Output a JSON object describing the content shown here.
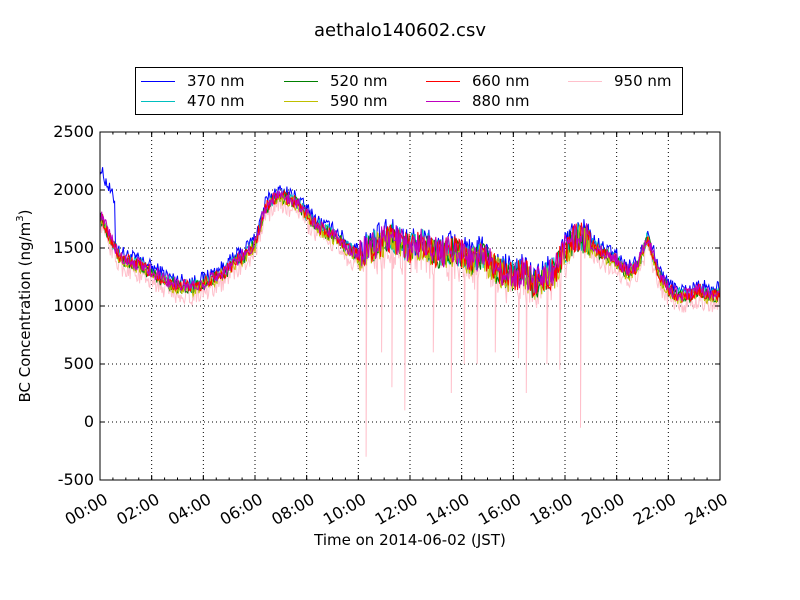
{
  "chart_data": {
    "type": "line",
    "title": "aethalo140602.csv",
    "xlabel": "Time on 2014-06-02 (JST)",
    "ylabel": "BC Concentration (ng/m³)",
    "ylabel_parts": {
      "text": "BC Concentration (ng/m",
      "superscript": "3",
      "close": ")"
    },
    "xlim": [
      0,
      24
    ],
    "ylim": [
      -500,
      2500
    ],
    "x_unit": "hours (JST)",
    "x_ticks": [
      "00:00",
      "02:00",
      "04:00",
      "06:00",
      "08:00",
      "10:00",
      "12:00",
      "14:00",
      "16:00",
      "18:00",
      "20:00",
      "22:00",
      "24:00"
    ],
    "y_ticks": [
      "-500",
      "0",
      "500",
      "1000",
      "1500",
      "2000",
      "2500"
    ],
    "grid": true,
    "legend_position": "top",
    "series": [
      {
        "name": "370 nm",
        "color": "#0000ff"
      },
      {
        "name": "470 nm",
        "color": "#00bfbf"
      },
      {
        "name": "520 nm",
        "color": "#008000"
      },
      {
        "name": "590 nm",
        "color": "#bfbf00"
      },
      {
        "name": "660 nm",
        "color": "#ff0000"
      },
      {
        "name": "880 nm",
        "color": "#bf00bf"
      },
      {
        "name": "950 nm",
        "color": "#ffc0cb"
      }
    ],
    "profile": {
      "x": [
        0,
        0.2,
        0.4,
        0.7,
        1.0,
        1.3,
        1.6,
        2.0,
        2.4,
        2.8,
        3.2,
        3.6,
        4.0,
        4.4,
        4.8,
        5.2,
        5.6,
        6.0,
        6.4,
        6.8,
        7.2,
        7.6,
        8.0,
        8.4,
        8.8,
        9.2,
        9.6,
        10.0,
        10.4,
        10.8,
        11.2,
        11.6,
        12.0,
        12.4,
        12.8,
        13.2,
        13.6,
        14.0,
        14.4,
        14.8,
        15.2,
        15.6,
        16.0,
        16.4,
        16.8,
        17.2,
        17.6,
        18.0,
        18.4,
        18.8,
        19.2,
        19.6,
        20.0,
        20.4,
        20.8,
        21.2,
        21.6,
        22.0,
        22.4,
        22.8,
        23.2,
        23.6,
        24.0
      ],
      "y": [
        1800,
        1700,
        1600,
        1450,
        1400,
        1380,
        1350,
        1300,
        1250,
        1200,
        1180,
        1170,
        1200,
        1250,
        1300,
        1380,
        1450,
        1550,
        1850,
        1950,
        1950,
        1900,
        1800,
        1700,
        1650,
        1600,
        1500,
        1450,
        1500,
        1550,
        1600,
        1550,
        1500,
        1550,
        1500,
        1450,
        1500,
        1450,
        1400,
        1450,
        1350,
        1300,
        1250,
        1300,
        1200,
        1250,
        1300,
        1500,
        1600,
        1600,
        1500,
        1450,
        1400,
        1300,
        1350,
        1600,
        1300,
        1150,
        1100,
        1100,
        1150,
        1100,
        1120
      ]
    },
    "dips_950nm": [
      {
        "x": 10.3,
        "y": -300
      },
      {
        "x": 10.9,
        "y": 600
      },
      {
        "x": 11.3,
        "y": 300
      },
      {
        "x": 11.8,
        "y": 100
      },
      {
        "x": 12.9,
        "y": 600
      },
      {
        "x": 13.6,
        "y": 250
      },
      {
        "x": 14.1,
        "y": 500
      },
      {
        "x": 14.6,
        "y": 500
      },
      {
        "x": 15.3,
        "y": 600
      },
      {
        "x": 16.2,
        "y": 550
      },
      {
        "x": 16.5,
        "y": 250
      },
      {
        "x": 17.3,
        "y": 500
      },
      {
        "x": 17.8,
        "y": 450
      },
      {
        "x": 18.6,
        "y": -50
      }
    ]
  }
}
